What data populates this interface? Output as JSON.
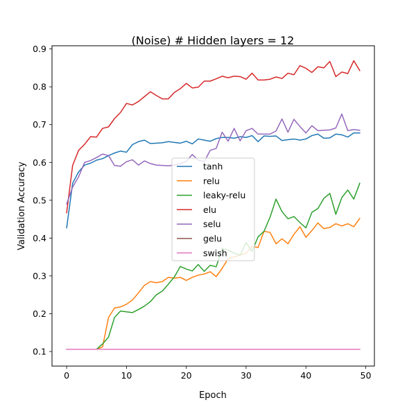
{
  "chart_data": {
    "type": "line",
    "title": "(Noise) # Hidden layers = 12",
    "xlabel": "Epoch",
    "ylabel": "Validation Accuracy",
    "xlim": [
      -2.45,
      51.45
    ],
    "ylim": [
      0.0615,
      0.9085
    ],
    "xticks": [
      0,
      10,
      20,
      30,
      40,
      50
    ],
    "yticks": [
      0.1,
      0.2,
      0.3,
      0.4,
      0.5,
      0.6,
      0.7,
      0.8,
      0.9
    ],
    "xtick_labels": [
      "0",
      "10",
      "20",
      "30",
      "40",
      "50"
    ],
    "ytick_labels": [
      "0.1",
      "0.2",
      "0.3",
      "0.4",
      "0.5",
      "0.6",
      "0.7",
      "0.8",
      "0.9"
    ],
    "grid": false,
    "legend_position": "center",
    "x": [
      0,
      1,
      2,
      3,
      4,
      5,
      6,
      7,
      8,
      9,
      10,
      11,
      12,
      13,
      14,
      15,
      16,
      17,
      18,
      19,
      20,
      21,
      22,
      23,
      24,
      25,
      26,
      27,
      28,
      29,
      30,
      31,
      32,
      33,
      34,
      35,
      36,
      37,
      38,
      39,
      40,
      41,
      42,
      43,
      44,
      45,
      46,
      47,
      48,
      49
    ],
    "series": [
      {
        "name": "tanh",
        "color": "#1f77b4",
        "values": [
          0.427,
          0.545,
          0.575,
          0.593,
          0.598,
          0.606,
          0.61,
          0.618,
          0.625,
          0.63,
          0.627,
          0.647,
          0.655,
          0.659,
          0.65,
          0.651,
          0.652,
          0.655,
          0.653,
          0.651,
          0.656,
          0.649,
          0.662,
          0.659,
          0.656,
          0.663,
          0.666,
          0.666,
          0.664,
          0.668,
          0.666,
          0.671,
          0.655,
          0.67,
          0.669,
          0.67,
          0.658,
          0.66,
          0.662,
          0.659,
          0.662,
          0.671,
          0.675,
          0.664,
          0.665,
          0.675,
          0.673,
          0.667,
          0.678,
          0.678
        ]
      },
      {
        "name": "relu",
        "color": "#ff7f0e",
        "values": [
          0.106,
          0.106,
          0.106,
          0.106,
          0.106,
          0.106,
          0.112,
          0.19,
          0.215,
          0.218,
          0.225,
          0.236,
          0.255,
          0.275,
          0.285,
          0.282,
          0.285,
          0.296,
          0.294,
          0.296,
          0.288,
          0.296,
          0.302,
          0.305,
          0.311,
          0.298,
          0.32,
          0.346,
          0.35,
          0.355,
          0.36,
          0.378,
          0.375,
          0.418,
          0.415,
          0.385,
          0.398,
          0.385,
          0.41,
          0.43,
          0.402,
          0.42,
          0.44,
          0.425,
          0.428,
          0.438,
          0.432,
          0.438,
          0.43,
          0.452
        ]
      },
      {
        "name": "leaky-relu",
        "color": "#2ca02c",
        "values": [
          0.106,
          0.106,
          0.106,
          0.106,
          0.106,
          0.106,
          0.12,
          0.138,
          0.19,
          0.207,
          0.205,
          0.203,
          0.211,
          0.22,
          0.232,
          0.25,
          0.26,
          0.278,
          0.297,
          0.325,
          0.318,
          0.313,
          0.33,
          0.312,
          0.328,
          0.324,
          0.372,
          0.368,
          0.36,
          0.355,
          0.388,
          0.365,
          0.403,
          0.418,
          0.455,
          0.503,
          0.47,
          0.451,
          0.457,
          0.441,
          0.427,
          0.468,
          0.478,
          0.505,
          0.518,
          0.463,
          0.507,
          0.527,
          0.503,
          0.545
        ]
      },
      {
        "name": "elu",
        "color": "#d62728",
        "values": [
          0.467,
          0.592,
          0.632,
          0.648,
          0.668,
          0.667,
          0.69,
          0.694,
          0.716,
          0.732,
          0.756,
          0.752,
          0.761,
          0.774,
          0.787,
          0.777,
          0.768,
          0.768,
          0.785,
          0.795,
          0.809,
          0.797,
          0.799,
          0.815,
          0.815,
          0.821,
          0.828,
          0.824,
          0.828,
          0.827,
          0.82,
          0.836,
          0.818,
          0.818,
          0.82,
          0.826,
          0.822,
          0.836,
          0.832,
          0.856,
          0.849,
          0.838,
          0.853,
          0.85,
          0.867,
          0.827,
          0.839,
          0.835,
          0.869,
          0.843
        ]
      },
      {
        "name": "selu",
        "color": "#9467bd",
        "values": [
          0.49,
          0.535,
          0.562,
          0.6,
          0.605,
          0.613,
          0.622,
          0.618,
          0.592,
          0.59,
          0.602,
          0.607,
          0.593,
          0.604,
          0.597,
          0.593,
          0.592,
          0.591,
          0.593,
          0.597,
          0.603,
          0.621,
          0.606,
          0.602,
          0.632,
          0.637,
          0.68,
          0.656,
          0.69,
          0.657,
          0.684,
          0.69,
          0.675,
          0.675,
          0.675,
          0.683,
          0.715,
          0.68,
          0.714,
          0.695,
          0.678,
          0.697,
          0.684,
          0.685,
          0.686,
          0.691,
          0.728,
          0.684,
          0.687,
          0.685
        ]
      },
      {
        "name": "gelu",
        "color": "#8c564b",
        "values": [
          0.106,
          0.106,
          0.106,
          0.106,
          0.106,
          0.106,
          0.106,
          0.106,
          0.106,
          0.106,
          0.106,
          0.106,
          0.106,
          0.106,
          0.106,
          0.106,
          0.106,
          0.106,
          0.106,
          0.106,
          0.106,
          0.106,
          0.106,
          0.106,
          0.106,
          0.106,
          0.106,
          0.106,
          0.106,
          0.106,
          0.106,
          0.106,
          0.106,
          0.106,
          0.106,
          0.106,
          0.106,
          0.106,
          0.106,
          0.106,
          0.106,
          0.106,
          0.106,
          0.106,
          0.106,
          0.106,
          0.106,
          0.106,
          0.106,
          0.106
        ]
      },
      {
        "name": "swish",
        "color": "#e377c2",
        "values": [
          0.106,
          0.106,
          0.106,
          0.106,
          0.106,
          0.106,
          0.106,
          0.106,
          0.106,
          0.106,
          0.106,
          0.106,
          0.106,
          0.106,
          0.106,
          0.106,
          0.106,
          0.106,
          0.106,
          0.106,
          0.106,
          0.106,
          0.106,
          0.106,
          0.106,
          0.106,
          0.106,
          0.106,
          0.106,
          0.106,
          0.106,
          0.106,
          0.106,
          0.106,
          0.106,
          0.106,
          0.106,
          0.106,
          0.106,
          0.106,
          0.106,
          0.106,
          0.106,
          0.106,
          0.106,
          0.106,
          0.106,
          0.106,
          0.106,
          0.106
        ]
      }
    ]
  }
}
